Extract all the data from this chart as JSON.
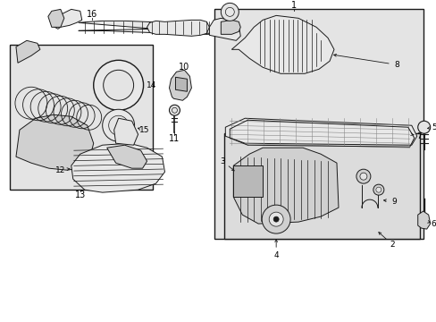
{
  "bg_color": "#ffffff",
  "line_color": "#1a1a1a",
  "fill_light": "#e8e8e8",
  "fill_mid": "#d0d0d0",
  "fill_dark": "#b8b8b8",
  "fill_box": "#e4e4e4",
  "fig_width": 4.89,
  "fig_height": 3.6,
  "dpi": 100
}
